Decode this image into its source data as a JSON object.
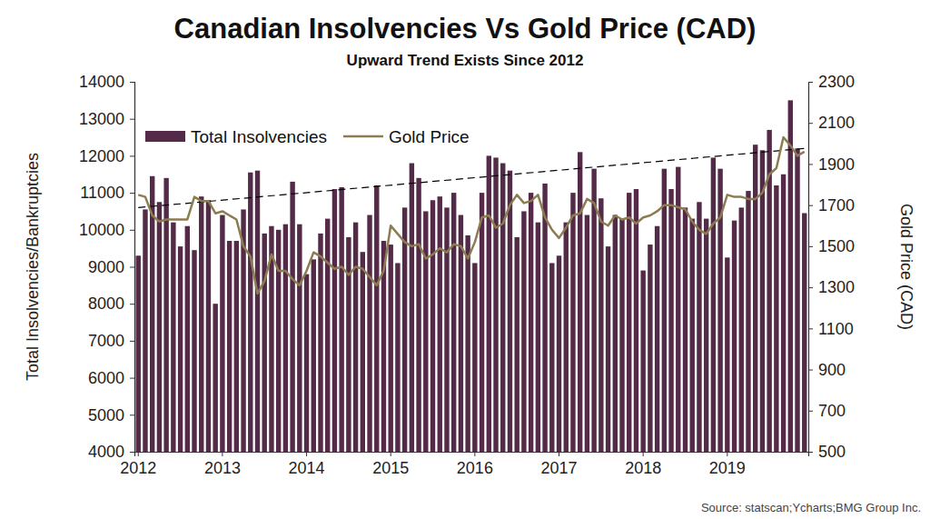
{
  "chart_data": {
    "type": "bar",
    "title": "Canadian Insolvencies Vs Gold Price (CAD)",
    "subtitle": "Upward Trend Exists Since 2012",
    "y_label": "Total Insolvencies/Bankruptcies",
    "y2_label": "Gold Price (CAD)",
    "annotations": [
      "Source: statscan;Ycharts;BMG Group Inc."
    ],
    "categories": [
      "2012",
      null,
      null,
      null,
      null,
      null,
      null,
      null,
      null,
      null,
      null,
      null,
      "2013",
      null,
      null,
      null,
      null,
      null,
      null,
      null,
      null,
      null,
      null,
      null,
      "2014",
      null,
      null,
      null,
      null,
      null,
      null,
      null,
      null,
      null,
      null,
      null,
      "2015",
      null,
      null,
      null,
      null,
      null,
      null,
      null,
      null,
      null,
      null,
      null,
      "2016",
      null,
      null,
      null,
      null,
      null,
      null,
      null,
      null,
      null,
      null,
      null,
      "2017",
      null,
      null,
      null,
      null,
      null,
      null,
      null,
      null,
      null,
      null,
      null,
      "2018",
      null,
      null,
      null,
      null,
      null,
      null,
      null,
      null,
      null,
      null,
      null,
      "2019",
      null,
      null,
      null,
      null,
      null,
      null,
      null,
      null,
      null,
      null,
      null
    ],
    "series": [
      {
        "name": "Total Insolvencies",
        "type": "bar",
        "color": "#532a47",
        "values": [
          9300,
          10550,
          11450,
          10750,
          11400,
          10200,
          9550,
          10100,
          9450,
          10900,
          10800,
          8000,
          10400,
          9700,
          9700,
          10550,
          11550,
          11600,
          9900,
          10100,
          10000,
          10150,
          11300,
          10150,
          8800,
          9200,
          9900,
          10300,
          11100,
          11150,
          9800,
          10200,
          9400,
          10400,
          11200,
          9700,
          9600,
          9100,
          10600,
          11800,
          11400,
          10500,
          10800,
          10900,
          10600,
          11000,
          10400,
          9850,
          9100,
          11000,
          12000,
          11950,
          11800,
          11600,
          9800,
          10500,
          11000,
          10200,
          11250,
          9100,
          9300,
          10200,
          11000,
          12100,
          10400,
          11650,
          10850,
          9550,
          10400,
          10300,
          11000,
          11100,
          8900,
          9600,
          10100,
          11650,
          11100,
          11700,
          10600,
          10300,
          10750,
          10300,
          11950,
          11650,
          9250,
          10250,
          10600,
          11050,
          12300,
          12150,
          12700,
          11200,
          11500,
          13500,
          12200,
          10450
        ]
      },
      {
        "name": "Gold Price",
        "type": "line",
        "axis": "y2",
        "color": "#8c7c52",
        "values": [
          1750,
          1740,
          1650,
          1620,
          1630,
          1630,
          1630,
          1630,
          1740,
          1720,
          1720,
          1660,
          1670,
          1650,
          1630,
          1500,
          1450,
          1270,
          1330,
          1460,
          1380,
          1380,
          1340,
          1310,
          1380,
          1470,
          1450,
          1420,
          1390,
          1400,
          1360,
          1400,
          1390,
          1350,
          1310,
          1380,
          1600,
          1560,
          1520,
          1500,
          1510,
          1440,
          1460,
          1490,
          1470,
          1510,
          1500,
          1440,
          1520,
          1640,
          1650,
          1590,
          1610,
          1700,
          1750,
          1710,
          1720,
          1750,
          1640,
          1580,
          1540,
          1590,
          1650,
          1660,
          1730,
          1710,
          1620,
          1600,
          1650,
          1630,
          1640,
          1610,
          1640,
          1650,
          1670,
          1700,
          1700,
          1690,
          1680,
          1620,
          1580,
          1560,
          1610,
          1640,
          1750,
          1740,
          1740,
          1730,
          1730,
          1760,
          1850,
          1880,
          2030,
          1990,
          1940,
          1960
        ]
      }
    ],
    "trend": {
      "values": [
        10600,
        12200
      ],
      "color": "#000000",
      "line_style": "dashed"
    },
    "ylim": [
      4000,
      14000
    ],
    "yticks": [
      4000,
      5000,
      6000,
      7000,
      8000,
      9000,
      10000,
      11000,
      12000,
      13000,
      14000
    ],
    "y2lim": [
      500,
      2300
    ],
    "y2ticks": [
      500,
      700,
      900,
      1100,
      1300,
      1500,
      1700,
      1900,
      2100,
      2300
    ],
    "grid": false,
    "legend": "upper left"
  }
}
